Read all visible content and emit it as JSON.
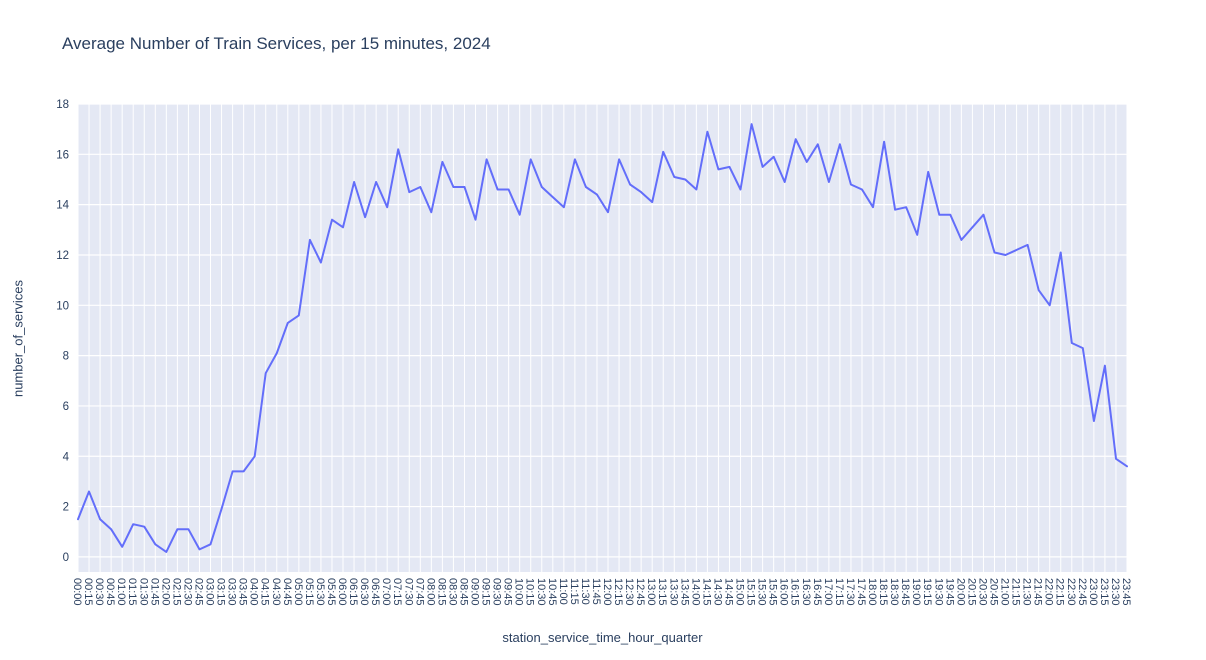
{
  "page": {
    "title": "Average Number of Train Services, per 15 minutes, 2024"
  },
  "chart_data": {
    "type": "line",
    "title": "Average Number of Train Services, per 15 minutes, 2024",
    "xlabel": "station_service_time_hour_quarter",
    "ylabel": "number_of_services",
    "legend": "none",
    "grid": true,
    "x_tick_angle": 90,
    "ylim": [
      -0.6,
      18.0
    ],
    "yticks": [
      0,
      2,
      4,
      6,
      8,
      10,
      12,
      14,
      16,
      18
    ],
    "x": [
      "00:00",
      "00:15",
      "00:30",
      "00:45",
      "01:00",
      "01:15",
      "01:30",
      "01:45",
      "02:00",
      "02:15",
      "02:30",
      "02:45",
      "03:00",
      "03:15",
      "03:30",
      "03:45",
      "04:00",
      "04:15",
      "04:30",
      "04:45",
      "05:00",
      "05:15",
      "05:30",
      "05:45",
      "06:00",
      "06:15",
      "06:30",
      "06:45",
      "07:00",
      "07:15",
      "07:30",
      "07:45",
      "08:00",
      "08:15",
      "08:30",
      "08:45",
      "09:00",
      "09:15",
      "09:30",
      "09:45",
      "10:00",
      "10:15",
      "10:30",
      "10:45",
      "11:00",
      "11:15",
      "11:30",
      "11:45",
      "12:00",
      "12:15",
      "12:30",
      "12:45",
      "13:00",
      "13:15",
      "13:30",
      "13:45",
      "14:00",
      "14:15",
      "14:30",
      "14:45",
      "15:00",
      "15:15",
      "15:30",
      "15:45",
      "16:00",
      "16:15",
      "16:30",
      "16:45",
      "17:00",
      "17:15",
      "17:30",
      "17:45",
      "18:00",
      "18:15",
      "18:30",
      "18:45",
      "19:00",
      "19:15",
      "19:30",
      "19:45",
      "20:00",
      "20:15",
      "20:30",
      "20:45",
      "21:00",
      "21:15",
      "21:30",
      "21:45",
      "22:00",
      "22:15",
      "22:30",
      "22:45",
      "23:00",
      "23:15",
      "23:30",
      "23:45"
    ],
    "values": [
      1.5,
      2.6,
      1.5,
      1.1,
      0.4,
      1.3,
      1.2,
      0.5,
      0.2,
      1.1,
      1.1,
      0.3,
      0.5,
      1.9,
      3.4,
      3.4,
      4.0,
      7.3,
      8.1,
      9.3,
      9.6,
      12.6,
      11.7,
      13.4,
      13.1,
      14.9,
      13.5,
      14.9,
      13.9,
      16.2,
      14.5,
      14.7,
      13.7,
      15.7,
      14.7,
      14.7,
      13.4,
      15.8,
      14.6,
      14.6,
      13.6,
      15.8,
      14.7,
      14.3,
      13.9,
      15.8,
      14.7,
      14.4,
      13.7,
      15.8,
      14.8,
      14.5,
      14.1,
      16.1,
      15.1,
      15.0,
      14.6,
      16.9,
      15.4,
      15.5,
      14.6,
      17.2,
      15.5,
      15.9,
      14.9,
      16.6,
      15.7,
      16.4,
      14.9,
      16.4,
      14.8,
      14.6,
      13.9,
      16.5,
      13.8,
      13.9,
      12.8,
      15.3,
      13.6,
      13.6,
      12.6,
      13.1,
      13.6,
      12.1,
      12.0,
      12.2,
      12.4,
      10.6,
      10.0,
      12.1,
      8.5,
      8.3,
      5.4,
      7.6,
      3.9,
      3.6
    ],
    "colors": {
      "line": "#636efa",
      "plot_background": "#e4e8f4",
      "gridline": "#ffffff",
      "text": "#2a3f5f"
    }
  }
}
